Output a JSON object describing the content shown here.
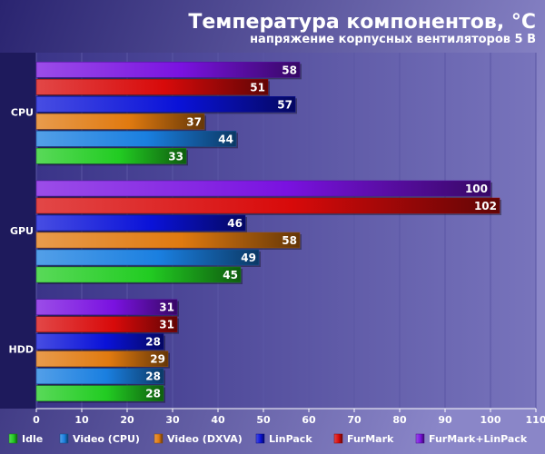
{
  "chart_data": {
    "type": "bar",
    "orientation": "horizontal",
    "title": "Температура компонентов, °C",
    "subtitle": "напряжение корпусных вентиляторов 5 В",
    "xlabel": "",
    "ylabel": "",
    "categories": [
      "CPU",
      "GPU",
      "HDD"
    ],
    "xlim": [
      0,
      110
    ],
    "xticks": [
      0,
      10,
      20,
      30,
      40,
      50,
      60,
      70,
      80,
      90,
      100,
      110
    ],
    "grid": true,
    "legend_position": "bottom",
    "series": [
      {
        "name": "Idle",
        "color": "#22cc22",
        "values": [
          33,
          45,
          28
        ]
      },
      {
        "name": "Video (CPU)",
        "color": "#1a7fe0",
        "values": [
          44,
          49,
          28
        ]
      },
      {
        "name": "Video (DXVA)",
        "color": "#e07a10",
        "values": [
          37,
          58,
          29
        ]
      },
      {
        "name": "LinPack",
        "color": "#0a12d8",
        "values": [
          57,
          46,
          28
        ]
      },
      {
        "name": "FurMark",
        "color": "#d80a0a",
        "values": [
          51,
          102,
          31
        ]
      },
      {
        "name": "FurMark+LinPack",
        "color": "#7a12e0",
        "values": [
          58,
          100,
          31
        ]
      }
    ]
  }
}
